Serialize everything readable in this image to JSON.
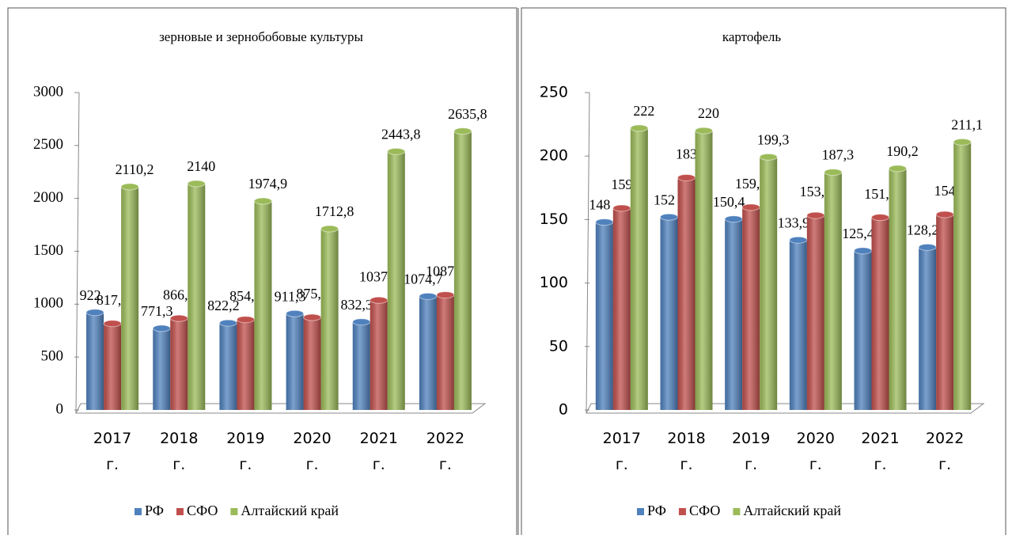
{
  "chart_data": [
    {
      "type": "bar",
      "title": "зерновые и зернобобовые культуры",
      "categories": [
        "2017 г.",
        "2018 г.",
        "2019 г.",
        "2020 г.",
        "2021 г.",
        "2022 г."
      ],
      "series": [
        {
          "name": "РФ",
          "color": "#4f81bd",
          "values": [
            922,
            771.3,
            822.2,
            911.3,
            832.3,
            1074.7
          ],
          "value_labels": [
            "922",
            "771,3",
            "822,2",
            "911,3",
            "832,3",
            "1074,7"
          ]
        },
        {
          "name": "СФО",
          "color": "#c0504d",
          "values": [
            817.3,
            866.7,
            854.9,
            875.2,
            1037.8,
            1087.6
          ],
          "value_labels": [
            "817,3",
            "866,7",
            "854,9",
            "875,2",
            "1037,8",
            "1087,6"
          ]
        },
        {
          "name": "Алтайский край",
          "color": "#9bbb59",
          "values": [
            2110.2,
            2140,
            1974.9,
            1712.8,
            2443.8,
            2635.8
          ],
          "value_labels": [
            "2110,2",
            "2140",
            "1974,9",
            "1712,8",
            "2443,8",
            "2635,8"
          ]
        }
      ],
      "ylim": [
        0,
        3000
      ],
      "yticks": [
        0,
        500,
        1000,
        1500,
        2000,
        2500,
        3000
      ],
      "legend": "bottom"
    },
    {
      "type": "bar",
      "title": "картофель",
      "categories": [
        "2017 г.",
        "2018 г.",
        "2019 г.",
        "2020 г.",
        "2021 г.",
        "2022 г."
      ],
      "series": [
        {
          "name": "РФ",
          "color": "#4f81bd",
          "values": [
            148,
            152,
            150.4,
            133.9,
            125.4,
            128.2
          ],
          "value_labels": [
            "148",
            "152",
            "150,4",
            "133,9",
            "125,4",
            "128,2"
          ]
        },
        {
          "name": "СФО",
          "color": "#c0504d",
          "values": [
            159,
            183,
            159.7,
            153.3,
            151.7,
            154
          ],
          "value_labels": [
            "159",
            "183",
            "159,7",
            "153,3",
            "151,7",
            "154"
          ]
        },
        {
          "name": "Алтайский край",
          "color": "#9bbb59",
          "values": [
            222,
            220,
            199.3,
            187.3,
            190.2,
            211.1
          ],
          "value_labels": [
            "222",
            "220",
            "199,3",
            "187,3",
            "190,2",
            "211,1"
          ]
        }
      ],
      "ylim": [
        0,
        250
      ],
      "yticks": [
        0,
        50,
        100,
        150,
        200,
        250
      ],
      "legend": "bottom"
    }
  ]
}
